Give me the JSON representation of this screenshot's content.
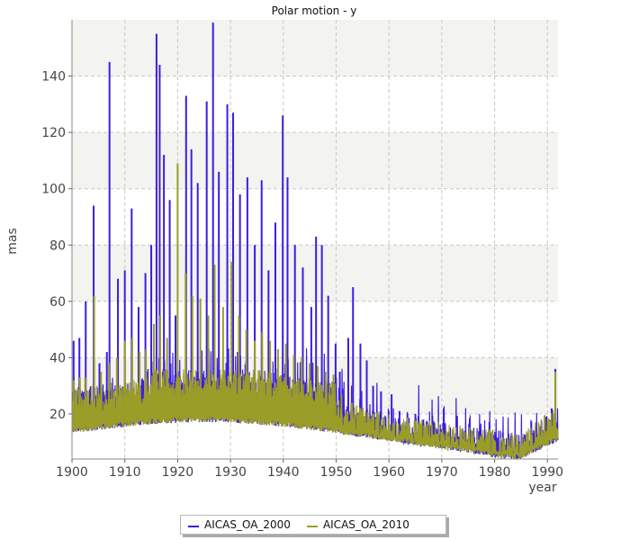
{
  "chart_data": {
    "type": "line",
    "title": "Polar motion - y",
    "xlabel": "year",
    "ylabel": "mas",
    "xlim": [
      1900,
      1992
    ],
    "ylim": [
      4,
      160
    ],
    "x_ticks": [
      1900,
      1910,
      1920,
      1930,
      1940,
      1950,
      1960,
      1970,
      1980,
      1990
    ],
    "y_ticks": [
      20,
      40,
      60,
      80,
      100,
      120,
      140
    ],
    "grid": true,
    "alternating_bands": true,
    "legend_position": "bottom-center",
    "series": [
      {
        "name": "AICAS_OA_2000",
        "color": "#3a1ee0",
        "peaks": [
          {
            "x": 1900.3,
            "y": 46
          },
          {
            "x": 1901.4,
            "y": 47
          },
          {
            "x": 1902.6,
            "y": 60
          },
          {
            "x": 1904.1,
            "y": 94
          },
          {
            "x": 1905.2,
            "y": 38
          },
          {
            "x": 1906.6,
            "y": 42
          },
          {
            "x": 1907.1,
            "y": 145
          },
          {
            "x": 1908.7,
            "y": 68
          },
          {
            "x": 1910.0,
            "y": 71
          },
          {
            "x": 1911.3,
            "y": 93
          },
          {
            "x": 1912.6,
            "y": 58
          },
          {
            "x": 1913.9,
            "y": 70
          },
          {
            "x": 1915.0,
            "y": 80
          },
          {
            "x": 1916.0,
            "y": 155
          },
          {
            "x": 1916.6,
            "y": 144
          },
          {
            "x": 1917.4,
            "y": 112
          },
          {
            "x": 1918.5,
            "y": 96
          },
          {
            "x": 1919.6,
            "y": 55
          },
          {
            "x": 1921.6,
            "y": 133
          },
          {
            "x": 1922.6,
            "y": 114
          },
          {
            "x": 1923.8,
            "y": 102
          },
          {
            "x": 1925.5,
            "y": 131
          },
          {
            "x": 1926.7,
            "y": 159
          },
          {
            "x": 1927.8,
            "y": 106
          },
          {
            "x": 1929.4,
            "y": 130
          },
          {
            "x": 1930.5,
            "y": 127
          },
          {
            "x": 1931.8,
            "y": 98
          },
          {
            "x": 1933.2,
            "y": 104
          },
          {
            "x": 1934.6,
            "y": 80
          },
          {
            "x": 1935.9,
            "y": 103
          },
          {
            "x": 1937.2,
            "y": 71
          },
          {
            "x": 1938.5,
            "y": 88
          },
          {
            "x": 1939.9,
            "y": 126
          },
          {
            "x": 1940.8,
            "y": 104
          },
          {
            "x": 1942.2,
            "y": 80
          },
          {
            "x": 1943.7,
            "y": 72
          },
          {
            "x": 1945.3,
            "y": 58
          },
          {
            "x": 1946.2,
            "y": 83
          },
          {
            "x": 1947.3,
            "y": 80
          },
          {
            "x": 1948.5,
            "y": 62
          },
          {
            "x": 1949.9,
            "y": 45
          },
          {
            "x": 1950.7,
            "y": 35
          },
          {
            "x": 1952.3,
            "y": 47
          },
          {
            "x": 1953.2,
            "y": 65
          },
          {
            "x": 1954.6,
            "y": 45
          },
          {
            "x": 1955.8,
            "y": 39
          },
          {
            "x": 1957.0,
            "y": 30
          },
          {
            "x": 1958.5,
            "y": 28
          },
          {
            "x": 1960.5,
            "y": 27
          },
          {
            "x": 1962.0,
            "y": 21
          },
          {
            "x": 1963.5,
            "y": 20
          },
          {
            "x": 1965.0,
            "y": 20
          },
          {
            "x": 1966.5,
            "y": 18
          },
          {
            "x": 1968.0,
            "y": 15
          },
          {
            "x": 1970.0,
            "y": 14
          },
          {
            "x": 1972.0,
            "y": 12
          },
          {
            "x": 1974.0,
            "y": 11
          },
          {
            "x": 1976.0,
            "y": 10
          },
          {
            "x": 1978.0,
            "y": 10
          },
          {
            "x": 1980.0,
            "y": 10
          },
          {
            "x": 1982.0,
            "y": 9
          },
          {
            "x": 1984.0,
            "y": 9
          },
          {
            "x": 1985.5,
            "y": 10
          },
          {
            "x": 1987.0,
            "y": 13
          },
          {
            "x": 1988.5,
            "y": 15
          },
          {
            "x": 1989.7,
            "y": 19
          },
          {
            "x": 1990.8,
            "y": 22
          },
          {
            "x": 1991.5,
            "y": 36
          }
        ]
      },
      {
        "name": "AICAS_OA_2010",
        "color": "#9a9d28",
        "peaks": [
          {
            "x": 1900.3,
            "y": 32
          },
          {
            "x": 1901.5,
            "y": 33
          },
          {
            "x": 1902.5,
            "y": 33
          },
          {
            "x": 1904.2,
            "y": 62
          },
          {
            "x": 1905.5,
            "y": 35
          },
          {
            "x": 1907.0,
            "y": 38
          },
          {
            "x": 1908.5,
            "y": 40
          },
          {
            "x": 1910.0,
            "y": 46
          },
          {
            "x": 1911.4,
            "y": 47
          },
          {
            "x": 1912.8,
            "y": 42
          },
          {
            "x": 1914.0,
            "y": 43
          },
          {
            "x": 1915.5,
            "y": 52
          },
          {
            "x": 1916.7,
            "y": 55
          },
          {
            "x": 1918.0,
            "y": 47
          },
          {
            "x": 1920.0,
            "y": 109
          },
          {
            "x": 1921.5,
            "y": 70
          },
          {
            "x": 1922.8,
            "y": 62
          },
          {
            "x": 1924.3,
            "y": 61
          },
          {
            "x": 1925.8,
            "y": 55
          },
          {
            "x": 1927.0,
            "y": 73
          },
          {
            "x": 1928.6,
            "y": 58
          },
          {
            "x": 1930.2,
            "y": 74
          },
          {
            "x": 1931.6,
            "y": 55
          },
          {
            "x": 1933.0,
            "y": 50
          },
          {
            "x": 1934.6,
            "y": 46
          },
          {
            "x": 1936.0,
            "y": 49
          },
          {
            "x": 1937.5,
            "y": 46
          },
          {
            "x": 1939.0,
            "y": 43
          },
          {
            "x": 1940.5,
            "y": 45
          },
          {
            "x": 1942.0,
            "y": 41
          },
          {
            "x": 1943.5,
            "y": 40
          },
          {
            "x": 1945.0,
            "y": 38
          },
          {
            "x": 1946.5,
            "y": 37
          },
          {
            "x": 1948.0,
            "y": 35
          },
          {
            "x": 1949.5,
            "y": 34
          },
          {
            "x": 1951.0,
            "y": 27
          },
          {
            "x": 1953.0,
            "y": 24
          },
          {
            "x": 1955.0,
            "y": 22
          },
          {
            "x": 1957.0,
            "y": 20
          },
          {
            "x": 1959.0,
            "y": 19
          },
          {
            "x": 1961.0,
            "y": 17
          },
          {
            "x": 1963.0,
            "y": 16
          },
          {
            "x": 1965.0,
            "y": 15
          },
          {
            "x": 1967.0,
            "y": 14
          },
          {
            "x": 1969.0,
            "y": 13
          },
          {
            "x": 1971.0,
            "y": 12
          },
          {
            "x": 1973.0,
            "y": 11
          },
          {
            "x": 1975.0,
            "y": 10
          },
          {
            "x": 1977.0,
            "y": 9
          },
          {
            "x": 1979.0,
            "y": 9
          },
          {
            "x": 1981.0,
            "y": 9
          },
          {
            "x": 1983.0,
            "y": 8
          },
          {
            "x": 1985.0,
            "y": 9
          },
          {
            "x": 1987.0,
            "y": 11
          },
          {
            "x": 1989.0,
            "y": 14
          },
          {
            "x": 1990.5,
            "y": 17
          },
          {
            "x": 1991.5,
            "y": 35
          }
        ]
      }
    ]
  }
}
